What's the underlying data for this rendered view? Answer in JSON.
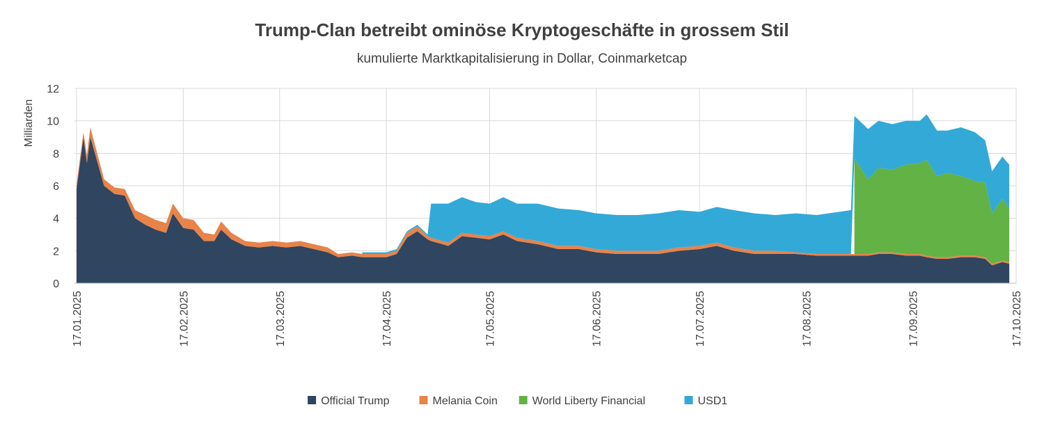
{
  "chart_data": {
    "type": "stacked-area",
    "title": "Trump-Clan betreibt ominöse Kryptogeschäfte in grossem Stil",
    "subtitle": "kumulierte Marktkapitalisierung in Dollar, Coinmarketcap",
    "y_label": "Milliarden",
    "x": [
      "17.01.2025",
      "19.01.2025",
      "20.01.2025",
      "21.01.2025",
      "23.01.2025",
      "25.01.2025",
      "28.01.2025",
      "31.01.2025",
      "03.02.2025",
      "06.02.2025",
      "09.02.2025",
      "12.02.2025",
      "14.02.2025",
      "17.02.2025",
      "20.02.2025",
      "23.02.2025",
      "26.02.2025",
      "28.02.2025",
      "03.03.2025",
      "07.03.2025",
      "11.03.2025",
      "15.03.2025",
      "19.03.2025",
      "23.03.2025",
      "27.03.2025",
      "31.03.2025",
      "03.04.2025",
      "07.04.2025",
      "10.04.2025",
      "17.04.2025",
      "20.04.2025",
      "23.04.2025",
      "26.04.2025",
      "29.04.2025",
      "30.04.2025",
      "05.05.2025",
      "09.05.2025",
      "13.05.2025",
      "17.05.2025",
      "21.05.2025",
      "25.05.2025",
      "31.05.2025",
      "06.06.2025",
      "12.06.2025",
      "17.06.2025",
      "23.06.2025",
      "29.06.2025",
      "05.07.2025",
      "11.07.2025",
      "17.07.2025",
      "22.07.2025",
      "27.07.2025",
      "02.08.2025",
      "08.08.2025",
      "14.08.2025",
      "20.08.2025",
      "30.08.2025",
      "31.08.2025",
      "04.09.2025",
      "07.09.2025",
      "11.09.2025",
      "15.09.2025",
      "19.09.2025",
      "21.09.2025",
      "24.09.2025",
      "27.09.2025",
      "01.10.2025",
      "05.10.2025",
      "08.10.2025",
      "10.10.2025",
      "13.10.2025",
      "15.10.2025"
    ],
    "series": [
      {
        "name": "Official Trump",
        "color": "#2f4560",
        "values": [
          5.8,
          9.0,
          7.4,
          9.0,
          7.5,
          6.0,
          5.5,
          5.4,
          4.0,
          3.6,
          3.3,
          3.1,
          4.3,
          3.4,
          3.3,
          2.6,
          2.6,
          3.3,
          2.7,
          2.3,
          2.2,
          2.3,
          2.2,
          2.3,
          2.1,
          1.9,
          1.6,
          1.7,
          1.6,
          1.6,
          1.8,
          2.8,
          3.2,
          2.7,
          2.6,
          2.3,
          2.9,
          2.8,
          2.7,
          3.0,
          2.6,
          2.4,
          2.1,
          2.1,
          1.9,
          1.8,
          1.8,
          1.8,
          2.0,
          2.1,
          2.3,
          2.0,
          1.8,
          1.8,
          1.8,
          1.7,
          1.7,
          1.7,
          1.7,
          1.8,
          1.8,
          1.7,
          1.7,
          1.6,
          1.5,
          1.5,
          1.6,
          1.6,
          1.5,
          1.1,
          1.3,
          1.2
        ]
      },
      {
        "name": "Melania Coin",
        "color": "#e8834a",
        "values": [
          0.3,
          0.3,
          0.5,
          0.6,
          0.5,
          0.4,
          0.4,
          0.4,
          0.5,
          0.6,
          0.6,
          0.6,
          0.6,
          0.6,
          0.6,
          0.5,
          0.4,
          0.5,
          0.4,
          0.3,
          0.3,
          0.3,
          0.3,
          0.3,
          0.3,
          0.3,
          0.2,
          0.2,
          0.2,
          0.2,
          0.2,
          0.3,
          0.3,
          0.2,
          0.2,
          0.2,
          0.2,
          0.2,
          0.2,
          0.2,
          0.2,
          0.2,
          0.2,
          0.2,
          0.2,
          0.2,
          0.2,
          0.2,
          0.2,
          0.2,
          0.2,
          0.2,
          0.2,
          0.2,
          0.1,
          0.1,
          0.1,
          0.1,
          0.1,
          0.1,
          0.1,
          0.1,
          0.1,
          0.1,
          0.1,
          0.1,
          0.1,
          0.1,
          0.1,
          0.1,
          0.1,
          0.1
        ]
      },
      {
        "name": "World Liberty Financial",
        "color": "#62b246",
        "values": [
          null,
          null,
          null,
          null,
          null,
          null,
          null,
          null,
          null,
          null,
          null,
          null,
          null,
          null,
          null,
          null,
          null,
          null,
          null,
          null,
          null,
          null,
          null,
          null,
          null,
          null,
          null,
          null,
          null,
          null,
          null,
          null,
          null,
          null,
          null,
          null,
          null,
          null,
          null,
          null,
          null,
          null,
          null,
          null,
          null,
          null,
          null,
          null,
          null,
          null,
          null,
          null,
          null,
          null,
          null,
          null,
          null,
          5.9,
          4.6,
          5.2,
          5.1,
          5.5,
          5.6,
          5.9,
          5.0,
          5.2,
          4.9,
          4.6,
          4.6,
          3.1,
          3.8,
          3.3
        ]
      },
      {
        "name": "USD1",
        "color": "#33a9d8",
        "values": [
          null,
          null,
          null,
          null,
          null,
          null,
          null,
          null,
          null,
          null,
          null,
          null,
          null,
          null,
          null,
          null,
          null,
          null,
          null,
          null,
          null,
          null,
          null,
          null,
          null,
          null,
          null,
          null,
          0.1,
          0.1,
          0.1,
          0.1,
          0.1,
          0.1,
          2.1,
          2.4,
          2.2,
          2.0,
          2.0,
          2.1,
          2.1,
          2.3,
          2.3,
          2.2,
          2.2,
          2.2,
          2.2,
          2.3,
          2.3,
          2.1,
          2.2,
          2.3,
          2.3,
          2.2,
          2.4,
          2.4,
          2.7,
          2.6,
          3.1,
          2.9,
          2.8,
          2.7,
          2.6,
          2.8,
          2.8,
          2.6,
          3.0,
          3.0,
          2.6,
          2.6,
          2.6,
          2.7
        ]
      }
    ],
    "xlim": [
      "17.01.2025",
      "17.10.2025"
    ],
    "xticks": [
      "17.01.2025",
      "17.02.2025",
      "17.03.2025",
      "17.04.2025",
      "17.05.2025",
      "17.06.2025",
      "17.07.2025",
      "17.08.2025",
      "17.09.2025",
      "17.10.2025"
    ],
    "ylim": [
      0,
      12
    ],
    "yticks": [
      0,
      2,
      4,
      6,
      8,
      10,
      12
    ],
    "grid": true,
    "legend": "bottom"
  }
}
